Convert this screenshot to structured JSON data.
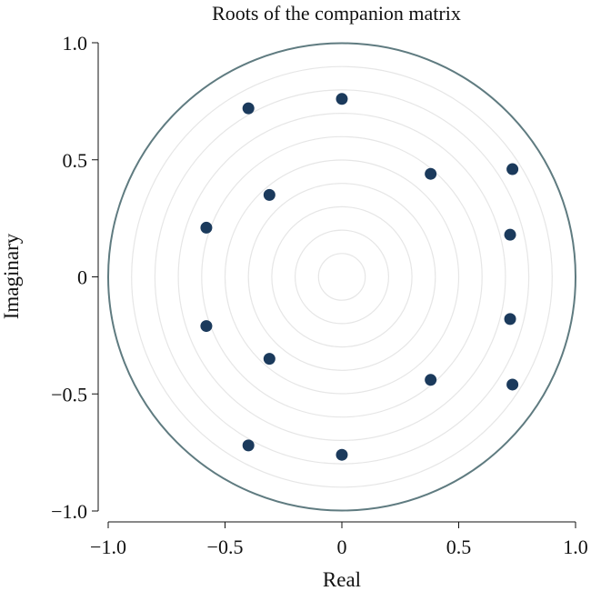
{
  "chart_data": {
    "type": "scatter",
    "title": "Roots of the companion matrix",
    "xlabel": "Real",
    "ylabel": "Imaginary",
    "xlim": [
      -1.0,
      1.0
    ],
    "ylim": [
      -1.0,
      1.0
    ],
    "x_ticks": [
      -1.0,
      -0.5,
      0,
      0.5,
      1.0
    ],
    "x_tick_labels": [
      "−1.0",
      "−0.5",
      "0",
      "0.5",
      "1.0"
    ],
    "y_ticks": [
      -1.0,
      -0.5,
      0,
      0.5,
      1.0
    ],
    "y_tick_labels": [
      "−1.0",
      "−0.5",
      "0",
      "0.5",
      "1.0"
    ],
    "grid_circle_radii": [
      0.1,
      0.2,
      0.3,
      0.4,
      0.5,
      0.6,
      0.7,
      0.8,
      0.9
    ],
    "unit_circle_radius": 1.0,
    "points": [
      {
        "x": 0.0,
        "y": 0.76
      },
      {
        "x": -0.4,
        "y": 0.72
      },
      {
        "x": 0.38,
        "y": 0.44
      },
      {
        "x": 0.73,
        "y": 0.46
      },
      {
        "x": -0.31,
        "y": 0.35
      },
      {
        "x": -0.58,
        "y": 0.21
      },
      {
        "x": 0.72,
        "y": 0.18
      },
      {
        "x": -0.58,
        "y": -0.21
      },
      {
        "x": 0.72,
        "y": -0.18
      },
      {
        "x": -0.31,
        "y": -0.35
      },
      {
        "x": 0.38,
        "y": -0.44
      },
      {
        "x": 0.73,
        "y": -0.46
      },
      {
        "x": -0.4,
        "y": -0.72
      },
      {
        "x": 0.0,
        "y": -0.76
      }
    ],
    "colors": {
      "points": "#1b3a5c",
      "unit_circle": "#5f7b80"
    }
  }
}
